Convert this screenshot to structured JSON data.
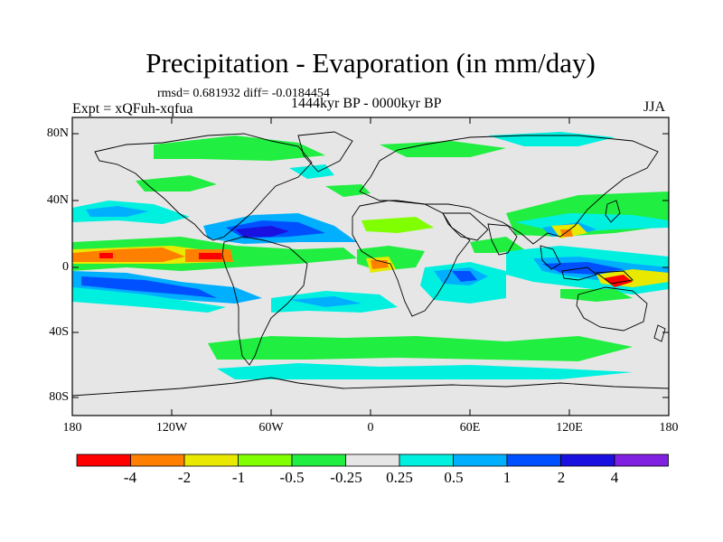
{
  "map": {
    "title": "Precipitation - Evaporation (in mm/day)",
    "stats": "rmsd= 0.681932 diff= -0.0184454",
    "experiment": "Expt = xQFuh-xqfua",
    "period": "1444kyr BP - 0000kyr BP",
    "season": "JJA",
    "lat_labels": [
      "80N",
      "40N",
      "0",
      "40S",
      "80S"
    ],
    "lon_labels": [
      "180",
      "120W",
      "60W",
      "0",
      "60E",
      "120E",
      "180"
    ]
  },
  "colorbar": {
    "colors": [
      "#ff0000",
      "#ff8000",
      "#e8e800",
      "#80ff00",
      "#20ee40",
      "#e6e6e6",
      "#00f0e0",
      "#00b0ff",
      "#0050ff",
      "#1a10e0",
      "#8020e0"
    ],
    "labels": [
      "-4",
      "-2",
      "-1",
      "-0.5",
      "-0.25",
      "0.25",
      "0.5",
      "1",
      "2",
      "4"
    ]
  }
}
